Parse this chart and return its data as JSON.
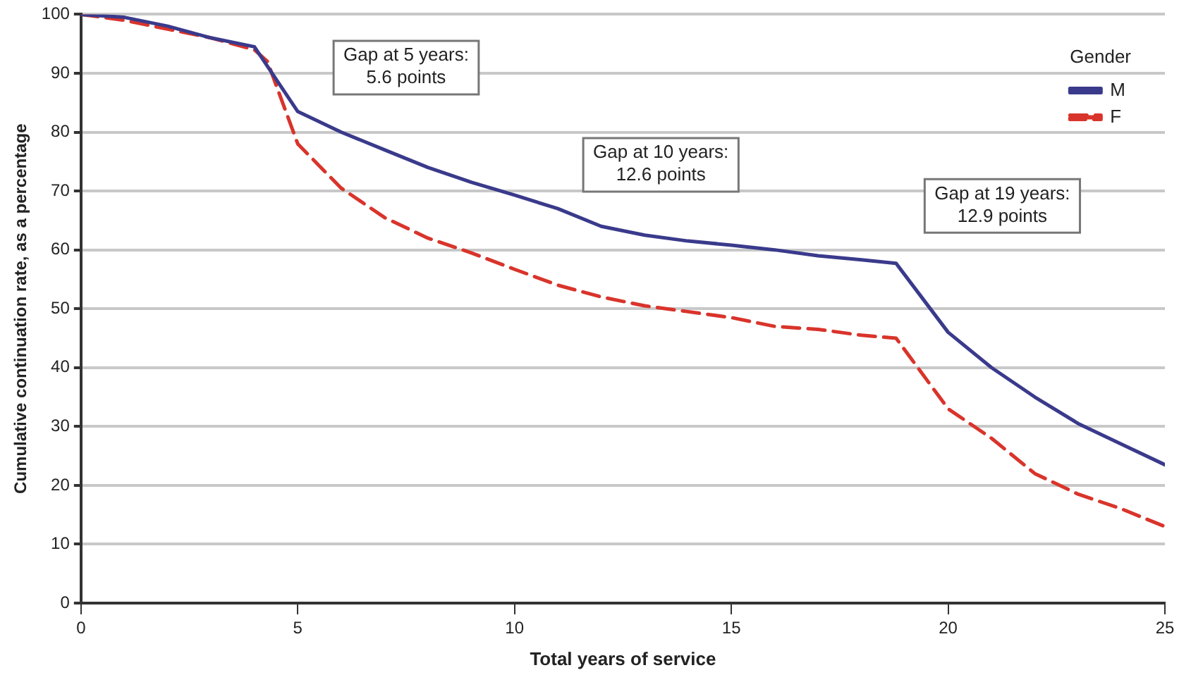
{
  "chart_data": {
    "type": "line",
    "xlabel": "Total years of service",
    "ylabel": "Cumulative continuation rate, as a percentage",
    "legend_title": "Gender",
    "legend": "top right",
    "grid": "y",
    "marker": "none",
    "xlim": [
      0,
      25
    ],
    "xticks": [
      0,
      5,
      10,
      15,
      20,
      25
    ],
    "ylim": [
      0,
      100
    ],
    "yticks": [
      0,
      10,
      20,
      30,
      40,
      50,
      60,
      70,
      80,
      90,
      100
    ],
    "annotations": [
      "Gap at 5 years:\n5.6 points",
      "Gap at 10 years:\n12.6 points",
      "Gap at 19 years:\n12.9 points"
    ],
    "series": [
      {
        "name": "M",
        "color": "#3a3a8c",
        "line_style": "solid",
        "x": [
          0,
          1,
          2,
          3,
          4,
          5,
          6,
          7,
          8,
          9,
          10,
          11,
          12,
          13,
          14,
          15,
          16,
          17,
          18,
          18.8,
          20,
          21,
          22,
          23,
          24,
          25
        ],
        "values": [
          100,
          99.5,
          98,
          96,
          94.5,
          83.5,
          80,
          77,
          74,
          71.5,
          69.3,
          67,
          64,
          62.5,
          61.5,
          60.8,
          60,
          59,
          58.3,
          57.7,
          46,
          40,
          35,
          30.5,
          27,
          23.5
        ]
      },
      {
        "name": "F",
        "color": "#d9342b",
        "line_style": "dashed",
        "x": [
          0,
          1,
          2,
          3,
          4,
          4.3,
          5,
          6,
          7,
          8,
          9,
          10,
          11,
          12,
          13,
          14,
          15,
          16,
          17,
          18,
          18.8,
          20,
          21,
          22,
          23,
          24,
          25
        ],
        "values": [
          100,
          99,
          97.5,
          96,
          94,
          92,
          78,
          70.5,
          65.5,
          62,
          59.5,
          56.7,
          54,
          52,
          50.5,
          49.5,
          48.5,
          47,
          46.5,
          45.5,
          45,
          33,
          28,
          22,
          18.5,
          16,
          13
        ]
      }
    ]
  }
}
